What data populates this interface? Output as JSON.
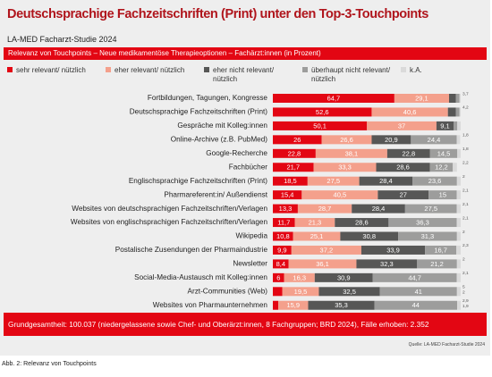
{
  "chart_data": {
    "type": "stacked-barh",
    "title": "Deutschsprachige Fachzeitschriften (Print) unter den Top-3-Touchpoints",
    "subtitle": "LA-MED Facharzt-Studie 2024",
    "banner": "Relevanz von Touchpoints – Neue medikamentöse Therapieoptionen – Fachärzt:innen (in Prozent)",
    "footnote": "Grundgesamtheit: 100.037 (niedergelassene sowie Chef- und Oberärzt:innen, 8 Fachgruppen; BRD 2024), Fälle erhoben: 2.352",
    "source": "Quelle: LA-MED Facharzt-Studie 2024",
    "caption": "Abb. 2: Relevanz von Touchpoints",
    "xlim": [
      0,
      100
    ],
    "categories": [
      "Fortbildungen, Tagungen, Kongresse",
      "Deutschsprachige Fachzeitschriften (Print)",
      "Gespräche mit Kolleg:innen",
      "Online-Archive (z.B. PubMed)",
      "Google-Recherche",
      "Fachbücher",
      "Englischsprachige Fachzeitschriften (Print)",
      "Pharmareferent:in/ Außendienst",
      "Websites von deutschsprachigen Fachzeitschriften/Verlagen",
      "Websites von englischsprachigen Fachzeitschriften/Verlagen",
      "Wikipedia",
      "Postalische Zusendungen der Pharmaindustrie",
      "Newsletter",
      "Social-Media-Austausch mit Kolleg:innen",
      "Arzt-Communities (Web)",
      "Websites von Pharmaunternehmen"
    ],
    "series": [
      {
        "name": "sehr relevant/ nützlich",
        "color": "#e30613",
        "label_color": "#ffffff",
        "values": [
          64.7,
          52.6,
          50.1,
          26,
          22.8,
          21.7,
          18.5,
          15.4,
          13.3,
          11.7,
          10.8,
          9.9,
          8.4,
          6,
          5,
          2.9
        ],
        "value_labels": [
          "64,7",
          "52,6",
          "50,1",
          "26",
          "22,8",
          "21,7",
          "18,5",
          "15,4",
          "13,3",
          "11,7",
          "10,8",
          "9,9",
          "8,4",
          "6",
          "5",
          "2,9"
        ]
      },
      {
        "name": "eher relevant/ nützlich",
        "color": "#f4a08c",
        "label_color": "#ffffff",
        "values": [
          29.1,
          40.6,
          37,
          26.6,
          38.1,
          33.3,
          27.5,
          40.5,
          28.7,
          21.3,
          25.1,
          37.2,
          36.1,
          16.3,
          19.5,
          15.9
        ],
        "value_labels": [
          "29,1",
          "40,6",
          "37",
          "26,6",
          "38,1",
          "33,3",
          "27,5",
          "40,5",
          "28,7",
          "21,3",
          "25,1",
          "37,2",
          "36,1",
          "16,3",
          "19,5",
          "15,9"
        ]
      },
      {
        "name": "eher nicht relevant/ nützlich",
        "color": "#575756",
        "label_color": "#ffffff",
        "values": [
          3.7,
          4.2,
          9.1,
          20.9,
          22.8,
          28.6,
          28.4,
          27,
          28.4,
          28.6,
          30.8,
          33.9,
          32.3,
          30.9,
          32.5,
          35.3
        ],
        "value_labels": [
          "3,7",
          "4,2",
          "9,1",
          "20,9",
          "22,8",
          "28,6",
          "28,4",
          "27",
          "28,4",
          "28,6",
          "30,8",
          "33,9",
          "32,3",
          "30,9",
          "32,5",
          "35,3"
        ]
      },
      {
        "name": "überhaupt nicht relevant/ nützlich",
        "color": "#9d9d9c",
        "label_color": "#ffffff",
        "values": [
          1.9,
          2,
          2,
          24.4,
          14.5,
          12.2,
          23.6,
          15,
          27.5,
          36.3,
          31.3,
          16.7,
          21.2,
          44.7,
          41,
          44
        ],
        "value_labels": [
          null,
          null,
          null,
          "24,4",
          "14,5",
          "12,2",
          "23,6",
          "15",
          "27,5",
          "36,3",
          "31,3",
          "16,7",
          "21,2",
          "44,7",
          "41",
          "44"
        ]
      },
      {
        "name": "k.A.",
        "color": "#dadada",
        "label_color": "#555555",
        "values": [
          0.6,
          0.6,
          1.8,
          1.8,
          1.8,
          2.2,
          2,
          2.1,
          2.1,
          2.1,
          2,
          2.3,
          2,
          2.1,
          2,
          1.9
        ],
        "value_labels": [
          null,
          null,
          null,
          "1,8",
          "1,8",
          "2,2",
          "2",
          "2,1",
          "2,1",
          "2,1",
          "2",
          "2,3",
          "2",
          "2,1",
          "2",
          "1,9"
        ]
      }
    ]
  }
}
